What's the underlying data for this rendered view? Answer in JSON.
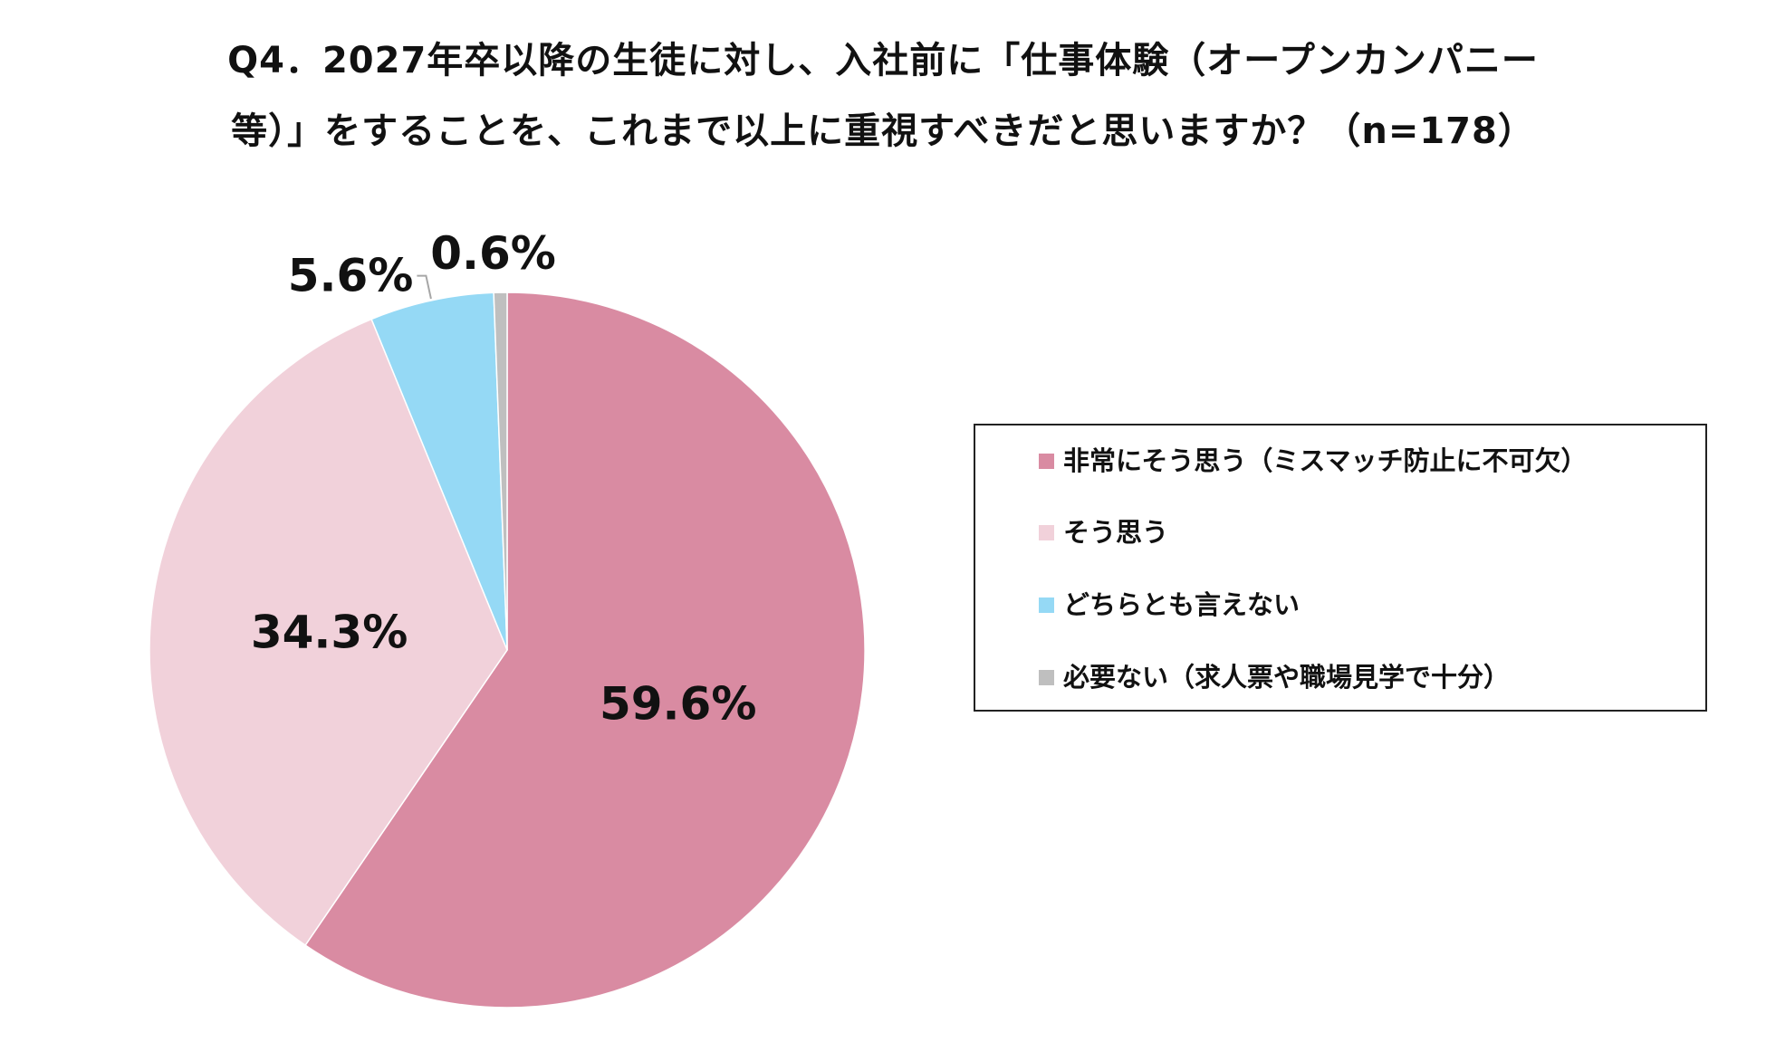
{
  "chart_data": {
    "type": "pie",
    "title_lines": [
      "Q4．2027年卒以降の生徒に対し、入社前に「仕事体験（オープンカンパニー",
      "等）」をすることを、これまで以上に重視すべきだと思いますか？（n=178）"
    ],
    "slices": [
      {
        "label": "非常にそう思う（ミスマッチ防止に不可欠）",
        "value": 59.6,
        "display": "59.6%",
        "color": "#d98ba2"
      },
      {
        "label": "そう思う",
        "value": 34.3,
        "display": "34.3%",
        "color": "#f1d1da"
      },
      {
        "label": "どちらとも言えない",
        "value": 5.6,
        "display": "5.6%",
        "color": "#95d9f5"
      },
      {
        "label": "必要ない（求人票や職場見学で十分）",
        "value": 0.6,
        "display": "0.6%",
        "color": "#bfbfbf"
      }
    ],
    "legend_position": "right",
    "start_angle": "12 o'clock",
    "direction": "clockwise"
  }
}
